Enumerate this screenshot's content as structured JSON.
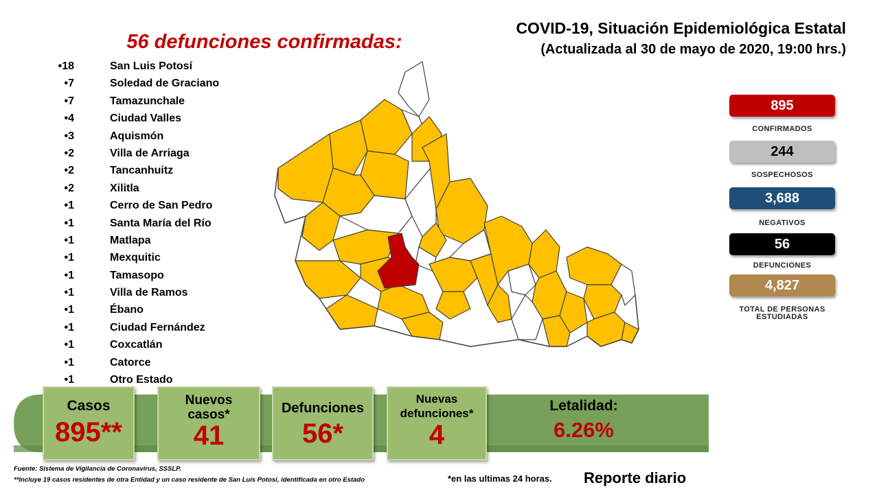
{
  "header": {
    "title": "COVID-19, Situación Epidemiológica Estatal",
    "subtitle": "(Actualizada al 30 de mayo de 2020, 19:00 hrs.)"
  },
  "deaths": {
    "heading": "56 defunciones confirmadas:",
    "items": [
      {
        "count": "18",
        "municipality": "San Luis Potosí"
      },
      {
        "count": "7",
        "municipality": "Soledad de Graciano"
      },
      {
        "count": "7",
        "municipality": "Tamazunchale"
      },
      {
        "count": "4",
        "municipality": "Ciudad Valles"
      },
      {
        "count": "3",
        "municipality": "Aquismón"
      },
      {
        "count": "2",
        "municipality": "Villa de Arriaga"
      },
      {
        "count": "2",
        "municipality": "Tancanhuitz"
      },
      {
        "count": "2",
        "municipality": "Xilitla"
      },
      {
        "count": "1",
        "municipality": "Cerro de San Pedro"
      },
      {
        "count": "1",
        "municipality": "Santa María del Río"
      },
      {
        "count": "1",
        "municipality": "Matlapa"
      },
      {
        "count": "1",
        "municipality": "Mexquitic"
      },
      {
        "count": "1",
        "municipality": "Tamasopo"
      },
      {
        "count": "1",
        "municipality": "Villa de Ramos"
      },
      {
        "count": "1",
        "municipality": "Ébano"
      },
      {
        "count": "1",
        "municipality": "Ciudad Fernández"
      },
      {
        "count": "1",
        "municipality": "Coxcatlán"
      },
      {
        "count": "1",
        "municipality": "Catorce"
      },
      {
        "count": "1",
        "municipality": "Otro Estado"
      }
    ]
  },
  "stats": [
    {
      "value": "895",
      "label": "CONFIRMADOS",
      "color": "#c00000",
      "text_color": "#ffffff"
    },
    {
      "value": "244",
      "label": "SOSPECHOSOS",
      "color": "#bfbfbf",
      "text_color": "#000000"
    },
    {
      "value": "3,688",
      "label": "NEGATIVOS",
      "color": "#1f4e79",
      "text_color": "#ffffff"
    },
    {
      "value": "56",
      "label": "DEFUNCIONES",
      "color": "#000000",
      "text_color": "#ffffff"
    },
    {
      "value": "4,827",
      "label": "TOTAL DE PERSONAS",
      "label2": "ESTUDIADAS",
      "color": "#b08850",
      "text_color": "#ffffff"
    }
  ],
  "summary": {
    "casos_label": "Casos",
    "casos_value": "895**",
    "nuevos_label_1": "Nuevos",
    "nuevos_label_2": "casos*",
    "nuevos_value": "41",
    "defunciones_label": "Defunciones",
    "defunciones_value": "56*",
    "nuevas_def_label_1": "Nuevas",
    "nuevas_def_label_2": "defunciones*",
    "nuevas_def_value": "4",
    "letalidad_label": "Letalidad:",
    "letalidad_value": "6.26%"
  },
  "footer": {
    "source": "Fuente: Sistema de Vigilancia de Coronavirus, SSSLP.",
    "note": "**Incluye 19 casos residentes de otra Entidad y un caso residente de San Luis Potosí, identificada en otro Estado",
    "last24": "*en las ultimas 24 horas.",
    "report": "Reporte diario"
  },
  "map_colors": {
    "with_cases": "#ffc000",
    "no_cases": "#ffffff",
    "highest": "#c00000",
    "border": "#404040"
  }
}
